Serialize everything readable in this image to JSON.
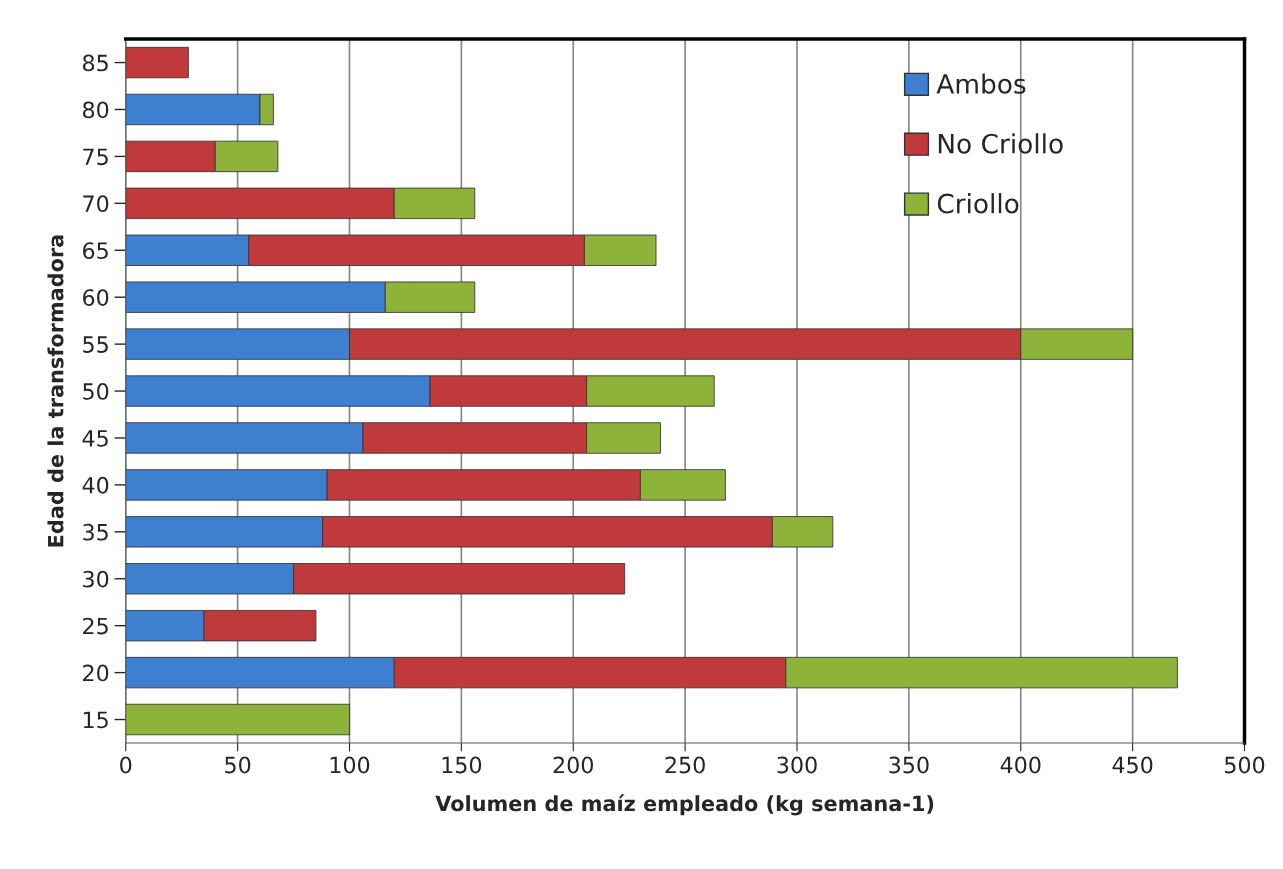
{
  "chart_data": {
    "type": "bar",
    "orientation": "horizontal",
    "stacked": true,
    "xlabel": "Volumen de maíz empleado (kg semana-1)",
    "ylabel": "Edad de la transformadora",
    "categories": [
      "85",
      "80",
      "75",
      "70",
      "65",
      "60",
      "55",
      "50",
      "45",
      "40",
      "35",
      "30",
      "25",
      "20",
      "15"
    ],
    "series": [
      {
        "name": "Ambos",
        "color": "#3f7fcf",
        "values": [
          null,
          60,
          null,
          null,
          55,
          116,
          100,
          136,
          106,
          90,
          88,
          75,
          35,
          120,
          null
        ]
      },
      {
        "name": "No Criollo",
        "color": "#c0393b",
        "values": [
          28,
          null,
          40,
          120,
          150,
          null,
          300,
          70,
          100,
          140,
          201,
          148,
          50,
          175,
          null
        ]
      },
      {
        "name": "Criollo",
        "color": "#8db33a",
        "values": [
          null,
          6,
          28,
          36,
          32,
          40,
          50,
          57,
          33,
          38,
          27,
          null,
          null,
          175,
          100
        ]
      }
    ],
    "xlim": [
      0,
      500
    ],
    "xticks": [
      0,
      50,
      100,
      150,
      200,
      250,
      300,
      350,
      400,
      450,
      500
    ],
    "grid": "x",
    "legend": "top right"
  }
}
